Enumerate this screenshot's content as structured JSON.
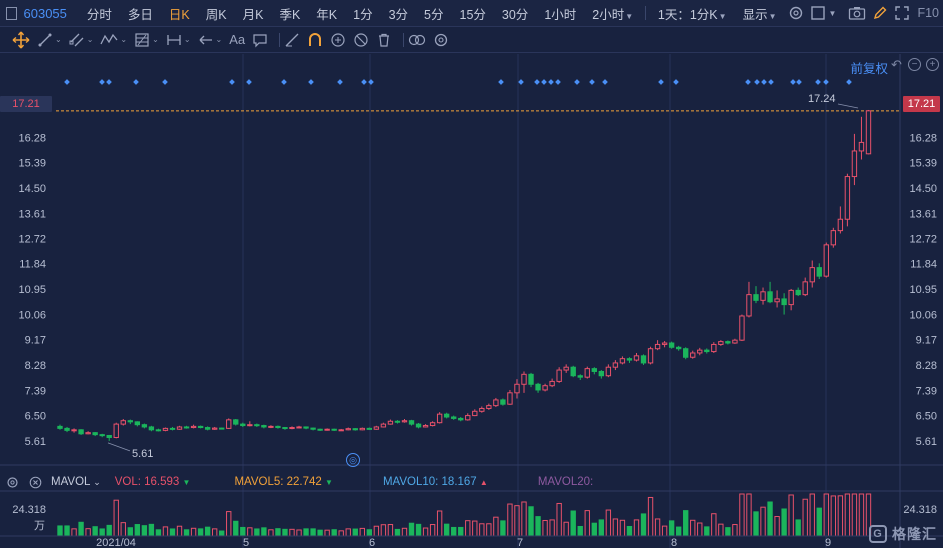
{
  "stock_code": "603055",
  "timeframes": [
    {
      "label": "分时",
      "active": false
    },
    {
      "label": "多日",
      "active": false
    },
    {
      "label": "日K",
      "active": true
    },
    {
      "label": "周K",
      "active": false
    },
    {
      "label": "月K",
      "active": false
    },
    {
      "label": "季K",
      "active": false
    },
    {
      "label": "年K",
      "active": false
    },
    {
      "label": "1分",
      "active": false
    },
    {
      "label": "3分",
      "active": false
    },
    {
      "label": "5分",
      "active": false
    },
    {
      "label": "15分",
      "active": false
    },
    {
      "label": "30分",
      "active": false
    },
    {
      "label": "1小时",
      "active": false
    },
    {
      "label": "2小时",
      "active": false,
      "caret": true
    }
  ],
  "period_select": "1天：1分K",
  "display_label": "显示",
  "f10_label": "F10",
  "toolbar_text_icon": "Aa",
  "adjust_label": "前复权",
  "price_axis": {
    "ticks": [
      "17.21",
      "16.28",
      "15.39",
      "14.50",
      "13.61",
      "12.72",
      "11.84",
      "10.95",
      "10.06",
      "9.17",
      "8.28",
      "7.39",
      "6.50",
      "5.61"
    ],
    "current_price_tag": "17.21",
    "current_price_tag_left": "17.21"
  },
  "annotations": {
    "high": "17.24",
    "low": "5.61"
  },
  "x_axis_labels": [
    "2021/04",
    "5",
    "6",
    "7",
    "8",
    "9"
  ],
  "volume": {
    "indicator": "MAVOL",
    "vol": "VOL: 16.593",
    "mavol5": "MAVOL5: 22.742",
    "mavol10": "MAVOL10: 18.167",
    "mavol20": "MAVOL20:",
    "axis_top": "24.318",
    "axis_unit": "万"
  },
  "watermark": "格隆汇",
  "colors": {
    "up": "#e7516a",
    "down": "#1bb55c",
    "accent": "#4a8ff5",
    "orange": "#f2a23a"
  },
  "chart_data": {
    "type": "candlestick",
    "price_range": [
      5.2,
      17.6
    ],
    "series": [
      {
        "o": 6.12,
        "c": 6.05,
        "h": 6.18,
        "l": 6.0
      },
      {
        "o": 6.05,
        "c": 5.98,
        "h": 6.1,
        "l": 5.92
      },
      {
        "o": 5.98,
        "c": 6.0,
        "h": 6.05,
        "l": 5.9
      },
      {
        "o": 6.0,
        "c": 5.86,
        "h": 6.02,
        "l": 5.82
      },
      {
        "o": 5.86,
        "c": 5.9,
        "h": 5.95,
        "l": 5.84
      },
      {
        "o": 5.9,
        "c": 5.83,
        "h": 5.92,
        "l": 5.78
      },
      {
        "o": 5.83,
        "c": 5.8,
        "h": 5.86,
        "l": 5.74
      },
      {
        "o": 5.8,
        "c": 5.73,
        "h": 5.82,
        "l": 5.61
      },
      {
        "o": 5.73,
        "c": 6.2,
        "h": 6.25,
        "l": 5.7
      },
      {
        "o": 6.2,
        "c": 6.32,
        "h": 6.38,
        "l": 6.15
      },
      {
        "o": 6.32,
        "c": 6.28,
        "h": 6.36,
        "l": 6.2
      },
      {
        "o": 6.28,
        "c": 6.18,
        "h": 6.3,
        "l": 6.12
      },
      {
        "o": 6.18,
        "c": 6.1,
        "h": 6.22,
        "l": 6.05
      },
      {
        "o": 6.1,
        "c": 6.0,
        "h": 6.14,
        "l": 5.95
      },
      {
        "o": 6.0,
        "c": 5.98,
        "h": 6.04,
        "l": 5.94
      },
      {
        "o": 5.98,
        "c": 6.05,
        "h": 6.08,
        "l": 5.95
      },
      {
        "o": 6.05,
        "c": 6.02,
        "h": 6.1,
        "l": 5.98
      },
      {
        "o": 6.02,
        "c": 6.1,
        "h": 6.14,
        "l": 6.0
      },
      {
        "o": 6.1,
        "c": 6.08,
        "h": 6.14,
        "l": 6.04
      },
      {
        "o": 6.08,
        "c": 6.12,
        "h": 6.18,
        "l": 6.05
      },
      {
        "o": 6.12,
        "c": 6.08,
        "h": 6.15,
        "l": 6.05
      },
      {
        "o": 6.08,
        "c": 6.02,
        "h": 6.12,
        "l": 5.98
      },
      {
        "o": 6.02,
        "c": 6.06,
        "h": 6.1,
        "l": 6.0
      },
      {
        "o": 6.06,
        "c": 6.05,
        "h": 6.08,
        "l": 6.02
      },
      {
        "o": 6.05,
        "c": 6.35,
        "h": 6.4,
        "l": 6.03
      },
      {
        "o": 6.35,
        "c": 6.2,
        "h": 6.38,
        "l": 6.15
      },
      {
        "o": 6.2,
        "c": 6.15,
        "h": 6.25,
        "l": 6.1
      },
      {
        "o": 6.15,
        "c": 6.18,
        "h": 6.3,
        "l": 6.12
      },
      {
        "o": 6.18,
        "c": 6.15,
        "h": 6.22,
        "l": 6.1
      },
      {
        "o": 6.15,
        "c": 6.1,
        "h": 6.18,
        "l": 6.05
      },
      {
        "o": 6.1,
        "c": 6.12,
        "h": 6.16,
        "l": 6.06
      },
      {
        "o": 6.12,
        "c": 6.08,
        "h": 6.15,
        "l": 6.04
      },
      {
        "o": 6.08,
        "c": 6.05,
        "h": 6.1,
        "l": 6.0
      },
      {
        "o": 6.05,
        "c": 6.08,
        "h": 6.12,
        "l": 6.02
      },
      {
        "o": 6.08,
        "c": 6.1,
        "h": 6.14,
        "l": 6.05
      },
      {
        "o": 6.1,
        "c": 6.06,
        "h": 6.12,
        "l": 6.02
      },
      {
        "o": 6.06,
        "c": 6.02,
        "h": 6.08,
        "l": 5.98
      },
      {
        "o": 6.02,
        "c": 6.0,
        "h": 6.04,
        "l": 5.96
      },
      {
        "o": 6.0,
        "c": 6.02,
        "h": 6.05,
        "l": 5.97
      },
      {
        "o": 6.02,
        "c": 5.99,
        "h": 6.04,
        "l": 5.96
      },
      {
        "o": 5.99,
        "c": 6.0,
        "h": 6.03,
        "l": 5.96
      },
      {
        "o": 6.0,
        "c": 6.04,
        "h": 6.08,
        "l": 5.98
      },
      {
        "o": 6.04,
        "c": 6.0,
        "h": 6.06,
        "l": 5.97
      },
      {
        "o": 6.0,
        "c": 6.05,
        "h": 6.08,
        "l": 5.98
      },
      {
        "o": 6.05,
        "c": 6.02,
        "h": 6.08,
        "l": 6.0
      },
      {
        "o": 6.02,
        "c": 6.1,
        "h": 6.14,
        "l": 6.0
      },
      {
        "o": 6.1,
        "c": 6.2,
        "h": 6.25,
        "l": 6.08
      },
      {
        "o": 6.2,
        "c": 6.3,
        "h": 6.36,
        "l": 6.18
      },
      {
        "o": 6.3,
        "c": 6.28,
        "h": 6.34,
        "l": 6.22
      },
      {
        "o": 6.28,
        "c": 6.32,
        "h": 6.38,
        "l": 6.25
      },
      {
        "o": 6.32,
        "c": 6.2,
        "h": 6.35,
        "l": 6.15
      },
      {
        "o": 6.2,
        "c": 6.1,
        "h": 6.24,
        "l": 6.05
      },
      {
        "o": 6.1,
        "c": 6.15,
        "h": 6.2,
        "l": 6.08
      },
      {
        "o": 6.15,
        "c": 6.25,
        "h": 6.3,
        "l": 6.12
      },
      {
        "o": 6.25,
        "c": 6.55,
        "h": 6.62,
        "l": 6.22
      },
      {
        "o": 6.55,
        "c": 6.45,
        "h": 6.6,
        "l": 6.4
      },
      {
        "o": 6.45,
        "c": 6.4,
        "h": 6.5,
        "l": 6.35
      },
      {
        "o": 6.4,
        "c": 6.35,
        "h": 6.45,
        "l": 6.3
      },
      {
        "o": 6.35,
        "c": 6.5,
        "h": 6.58,
        "l": 6.32
      },
      {
        "o": 6.5,
        "c": 6.65,
        "h": 6.72,
        "l": 6.48
      },
      {
        "o": 6.65,
        "c": 6.75,
        "h": 6.82,
        "l": 6.6
      },
      {
        "o": 6.75,
        "c": 6.85,
        "h": 6.92,
        "l": 6.7
      },
      {
        "o": 6.85,
        "c": 7.05,
        "h": 7.12,
        "l": 6.8
      },
      {
        "o": 7.05,
        "c": 6.9,
        "h": 7.1,
        "l": 6.85
      },
      {
        "o": 6.9,
        "c": 7.3,
        "h": 7.4,
        "l": 6.88
      },
      {
        "o": 7.3,
        "c": 7.6,
        "h": 7.78,
        "l": 7.1
      },
      {
        "o": 7.6,
        "c": 7.95,
        "h": 8.05,
        "l": 7.3
      },
      {
        "o": 7.95,
        "c": 7.6,
        "h": 8.0,
        "l": 7.5
      },
      {
        "o": 7.6,
        "c": 7.4,
        "h": 7.65,
        "l": 7.3
      },
      {
        "o": 7.4,
        "c": 7.55,
        "h": 7.62,
        "l": 7.35
      },
      {
        "o": 7.55,
        "c": 7.7,
        "h": 7.8,
        "l": 7.5
      },
      {
        "o": 7.7,
        "c": 8.1,
        "h": 8.2,
        "l": 7.65
      },
      {
        "o": 8.1,
        "c": 8.2,
        "h": 8.3,
        "l": 8.0
      },
      {
        "o": 8.2,
        "c": 7.9,
        "h": 8.25,
        "l": 7.85
      },
      {
        "o": 7.9,
        "c": 7.85,
        "h": 7.95,
        "l": 7.75
      },
      {
        "o": 7.85,
        "c": 8.15,
        "h": 8.22,
        "l": 7.8
      },
      {
        "o": 8.15,
        "c": 8.05,
        "h": 8.2,
        "l": 7.95
      },
      {
        "o": 8.05,
        "c": 7.9,
        "h": 8.1,
        "l": 7.8
      },
      {
        "o": 7.9,
        "c": 8.2,
        "h": 8.3,
        "l": 7.85
      },
      {
        "o": 8.2,
        "c": 8.35,
        "h": 8.45,
        "l": 8.1
      },
      {
        "o": 8.35,
        "c": 8.5,
        "h": 8.58,
        "l": 8.3
      },
      {
        "o": 8.5,
        "c": 8.45,
        "h": 8.55,
        "l": 8.35
      },
      {
        "o": 8.45,
        "c": 8.6,
        "h": 8.7,
        "l": 8.4
      },
      {
        "o": 8.6,
        "c": 8.35,
        "h": 8.65,
        "l": 8.28
      },
      {
        "o": 8.35,
        "c": 8.85,
        "h": 8.92,
        "l": 8.3
      },
      {
        "o": 8.85,
        "c": 9.0,
        "h": 9.15,
        "l": 8.8
      },
      {
        "o": 9.0,
        "c": 9.05,
        "h": 9.12,
        "l": 8.9
      },
      {
        "o": 9.05,
        "c": 8.9,
        "h": 9.1,
        "l": 8.85
      },
      {
        "o": 8.9,
        "c": 8.85,
        "h": 8.95,
        "l": 8.78
      },
      {
        "o": 8.85,
        "c": 8.55,
        "h": 8.9,
        "l": 8.48
      },
      {
        "o": 8.55,
        "c": 8.7,
        "h": 8.78,
        "l": 8.5
      },
      {
        "o": 8.7,
        "c": 8.8,
        "h": 8.88,
        "l": 8.62
      },
      {
        "o": 8.8,
        "c": 8.75,
        "h": 8.86,
        "l": 8.68
      },
      {
        "o": 8.75,
        "c": 9.0,
        "h": 9.08,
        "l": 8.7
      },
      {
        "o": 9.0,
        "c": 9.1,
        "h": 9.15,
        "l": 8.95
      },
      {
        "o": 9.1,
        "c": 9.05,
        "h": 9.14,
        "l": 9.0
      },
      {
        "o": 9.05,
        "c": 9.15,
        "h": 9.2,
        "l": 9.02
      },
      {
        "o": 9.15,
        "c": 10.0,
        "h": 10.05,
        "l": 9.12
      },
      {
        "o": 10.0,
        "c": 10.75,
        "h": 11.2,
        "l": 9.95
      },
      {
        "o": 10.75,
        "c": 10.55,
        "h": 11.05,
        "l": 10.45
      },
      {
        "o": 10.55,
        "c": 10.85,
        "h": 11.0,
        "l": 10.4
      },
      {
        "o": 10.85,
        "c": 10.5,
        "h": 11.2,
        "l": 10.45
      },
      {
        "o": 10.5,
        "c": 10.6,
        "h": 10.9,
        "l": 10.3
      },
      {
        "o": 10.6,
        "c": 10.4,
        "h": 10.8,
        "l": 10.05
      },
      {
        "o": 10.4,
        "c": 10.9,
        "h": 10.95,
        "l": 10.2
      },
      {
        "o": 10.9,
        "c": 10.75,
        "h": 11.0,
        "l": 10.7
      },
      {
        "o": 10.75,
        "c": 11.2,
        "h": 11.35,
        "l": 10.7
      },
      {
        "o": 11.2,
        "c": 11.7,
        "h": 11.95,
        "l": 11.0
      },
      {
        "o": 11.7,
        "c": 11.4,
        "h": 11.85,
        "l": 11.3
      },
      {
        "o": 11.4,
        "c": 12.5,
        "h": 12.58,
        "l": 11.35
      },
      {
        "o": 12.5,
        "c": 13.0,
        "h": 13.1,
        "l": 12.4
      },
      {
        "o": 13.0,
        "c": 13.4,
        "h": 13.85,
        "l": 12.9
      },
      {
        "o": 13.4,
        "c": 14.9,
        "h": 15.0,
        "l": 13.15
      },
      {
        "o": 14.9,
        "c": 15.8,
        "h": 16.4,
        "l": 14.6
      },
      {
        "o": 15.8,
        "c": 16.1,
        "h": 17.0,
        "l": 15.5
      },
      {
        "o": 15.7,
        "c": 17.21,
        "h": 17.24,
        "l": 15.68
      }
    ],
    "volume_max": 24.318
  }
}
